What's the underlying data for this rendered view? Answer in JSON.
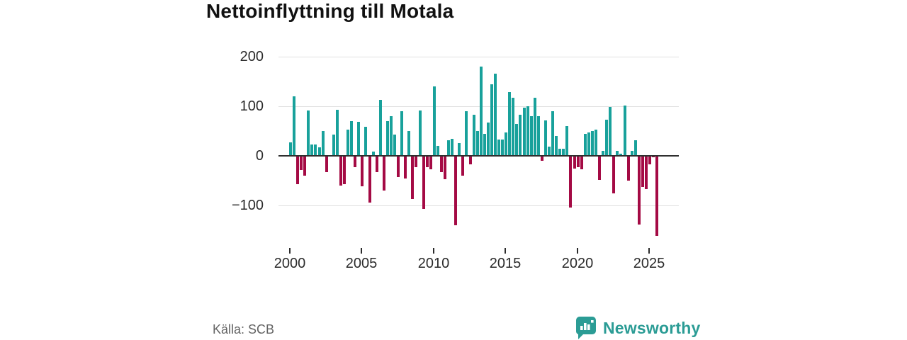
{
  "title": "Nettoinflyttning till Motala",
  "footer": {
    "source": "Källa: SCB",
    "brand_name": "Newsworthy"
  },
  "colors": {
    "positive": "#18a19b",
    "negative": "#a40a44",
    "axis": "#2f2f2f",
    "grid": "#e0e0e0",
    "brand_teal": "#2b9c95",
    "title_color": "#111111"
  },
  "chart_data": {
    "type": "bar",
    "title": "Nettoinflyttning till Motala",
    "xlabel": "",
    "ylabel": "",
    "start_year": 2000,
    "start_quarter": 1,
    "frequency": "quarterly",
    "values": [
      25,
      118,
      -55,
      -27,
      -39,
      90,
      21,
      21,
      15,
      48,
      -31,
      0,
      41,
      92,
      -59,
      -56,
      51,
      69,
      -22,
      67,
      -60,
      57,
      -93,
      7,
      -31,
      112,
      -69,
      69,
      78,
      41,
      -41,
      89,
      -44,
      48,
      -86,
      -21,
      90,
      -105,
      -21,
      -26,
      138,
      19,
      -31,
      -46,
      30,
      33,
      -138,
      24,
      -38,
      89,
      -15,
      82,
      48,
      178,
      43,
      66,
      143,
      165,
      32,
      32,
      46,
      127,
      116,
      63,
      81,
      96,
      98,
      79,
      115,
      78,
      -9,
      70,
      17,
      89,
      38,
      13,
      13,
      58,
      -103,
      -24,
      -22,
      -25,
      43,
      46,
      48,
      51,
      -47,
      9,
      71,
      97,
      -74,
      9,
      3,
      100,
      -49,
      9,
      30,
      -137,
      -62,
      -65,
      -15,
      -2,
      -160
    ],
    "y_ticks": [
      200,
      100,
      0,
      -100
    ],
    "x_ticks": [
      2000,
      2005,
      2010,
      2015,
      2020,
      2025
    ],
    "ylim": [
      -175,
      210
    ],
    "grid": true,
    "legend": "none",
    "positive_color": "#18a19b",
    "negative_color": "#a40a44"
  }
}
